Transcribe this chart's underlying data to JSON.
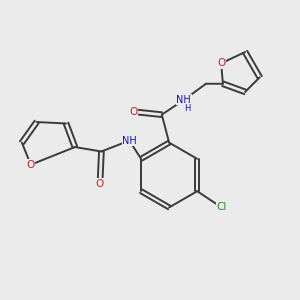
{
  "background_color": "#ebebeb",
  "bond_color": "#3a3a3a",
  "line_width": 1.4,
  "fig_width": 3.0,
  "fig_height": 3.0,
  "xlim": [
    0.0,
    1.0
  ],
  "ylim": [
    0.0,
    1.0
  ]
}
